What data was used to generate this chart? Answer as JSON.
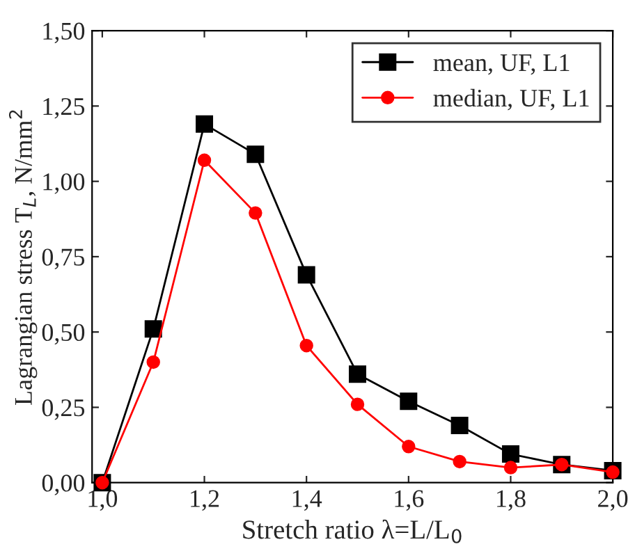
{
  "chart_data": {
    "type": "line",
    "xlabel": "Stretch ratio λ=L/L$_{0}$",
    "ylabel": "Lagrangian stress T$_{L}$, N/mm$^{2}$",
    "x": [
      1.0,
      1.1,
      1.2,
      1.3,
      1.4,
      1.5,
      1.6,
      1.7,
      1.8,
      1.9,
      2.0
    ],
    "series": [
      {
        "name": "mean, UF, L1",
        "color": "#000000",
        "marker": "square",
        "values": [
          0,
          0.51,
          1.19,
          1.09,
          0.69,
          0.36,
          0.27,
          0.19,
          0.095,
          0.06,
          0.04
        ]
      },
      {
        "name": "median, UF, L1",
        "color": "#ff0000",
        "marker": "circle",
        "values": [
          0,
          0.4,
          1.07,
          0.895,
          0.455,
          0.26,
          0.12,
          0.07,
          0.05,
          0.06,
          0.035
        ]
      }
    ],
    "xlim": [
      0.98,
      2.0
    ],
    "xticks": [
      {
        "value": 1.0,
        "label": "1,0"
      },
      {
        "value": 1.2,
        "label": "1,2"
      },
      {
        "value": 1.4,
        "label": "1,4"
      },
      {
        "value": 1.6,
        "label": "1,6"
      },
      {
        "value": 1.8,
        "label": "1,8"
      },
      {
        "value": 2.0,
        "label": "2,0"
      }
    ],
    "ylim": [
      0,
      1.5
    ],
    "yticks": [
      {
        "value": 0,
        "label": "0,00"
      },
      {
        "value": 0.25,
        "label": "0,25"
      },
      {
        "value": 0.5,
        "label": "0,50"
      },
      {
        "value": 0.75,
        "label": "0,75"
      },
      {
        "value": 1.0,
        "label": "1,00"
      },
      {
        "value": 1.25,
        "label": "1,25"
      },
      {
        "value": 1.5,
        "label": "1,50"
      }
    ],
    "legend": "top right",
    "grid": false,
    "line_style": "solid"
  }
}
